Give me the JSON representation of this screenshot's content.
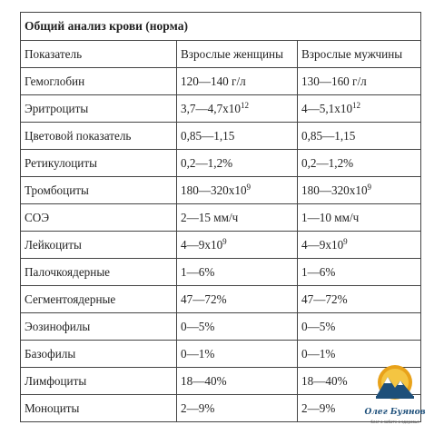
{
  "table": {
    "title": "Общий анализ крови (норма)",
    "headers": [
      "Показатель",
      "Взрослые женщины",
      "Взрослые мужчины"
    ],
    "rows": [
      {
        "name": "Гемоглобин",
        "women": "120—140 г/л",
        "women_sup": "",
        "men": "130—160 г/л",
        "men_sup": ""
      },
      {
        "name": "Эритроциты",
        "women": "3,7—4,7x10",
        "women_sup": "12",
        "men": "4—5,1x10",
        "men_sup": "12"
      },
      {
        "name": "Цветовой показатель",
        "women": "0,85—1,15",
        "women_sup": "",
        "men": "0,85—1,15",
        "men_sup": ""
      },
      {
        "name": "Ретикулоциты",
        "women": "0,2—1,2%",
        "women_sup": "",
        "men": "0,2—1,2%",
        "men_sup": ""
      },
      {
        "name": "Тромбоциты",
        "women": "180—320x10",
        "women_sup": "9",
        "men": "180—320x10",
        "men_sup": "9"
      },
      {
        "name": "СОЭ",
        "women": "2—15 мм/ч",
        "women_sup": "",
        "men": "1—10 мм/ч",
        "men_sup": ""
      },
      {
        "name": "Лейкоциты",
        "women": "4—9x10",
        "women_sup": "9",
        "men": "4—9x10",
        "men_sup": "9"
      },
      {
        "name": "Палочкоядерные",
        "women": "1—6%",
        "women_sup": "",
        "men": "1—6%",
        "men_sup": ""
      },
      {
        "name": "Сегментоядерные",
        "women": "47—72%",
        "women_sup": "",
        "men": "47—72%",
        "men_sup": ""
      },
      {
        "name": "Эозинофилы",
        "women": "0—5%",
        "women_sup": "",
        "men": "0—5%",
        "men_sup": ""
      },
      {
        "name": "Базофилы",
        "women": "0—1%",
        "women_sup": "",
        "men": "0—1%",
        "men_sup": ""
      },
      {
        "name": "Лимфоциты",
        "women": "18—40%",
        "women_sup": "",
        "men": "18—40%",
        "men_sup": ""
      },
      {
        "name": "Моноциты",
        "women": "2—9%",
        "women_sup": "",
        "men": "2—9%",
        "men_sup": ""
      }
    ]
  },
  "watermark": {
    "name": "Олег Буянов",
    "tagline": "блог о заботе о здоровье",
    "colors": {
      "primary": "#1d4f7a",
      "accent": "#e8a21a"
    }
  }
}
